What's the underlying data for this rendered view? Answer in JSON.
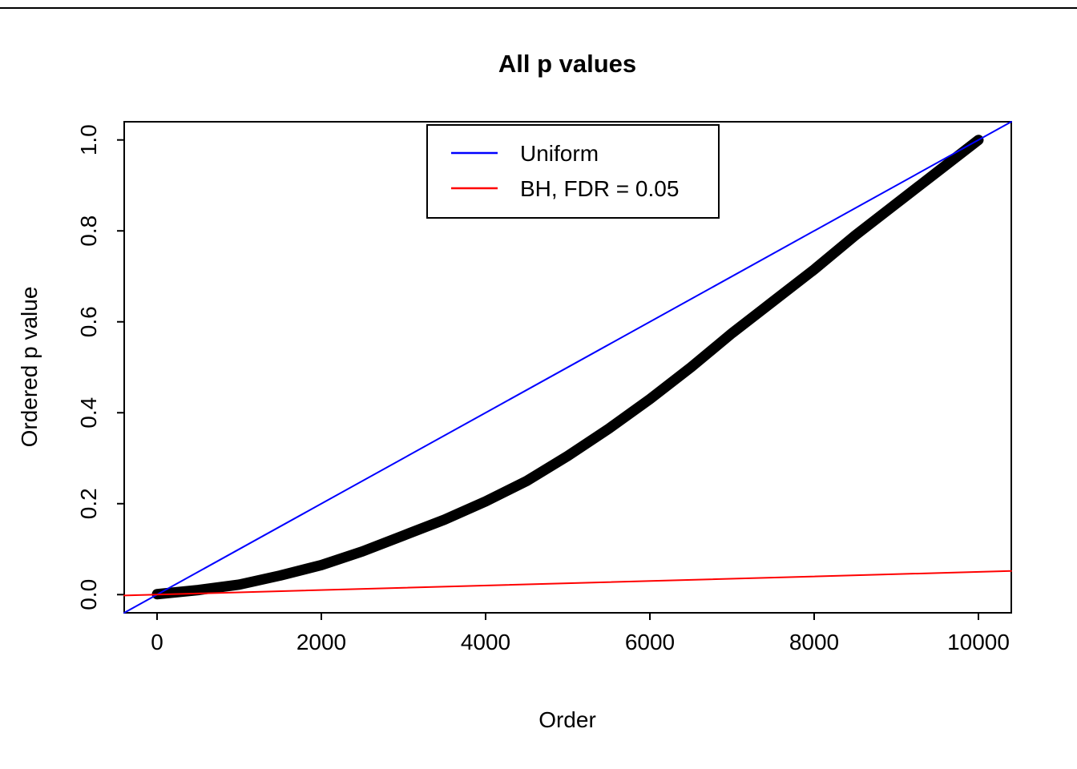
{
  "chart_data": {
    "type": "scatter",
    "title": "All p values",
    "xlabel": "Order",
    "ylabel": "Ordered p value",
    "xlim": [
      0,
      10000
    ],
    "ylim": [
      0,
      1
    ],
    "x_tick_values": [
      0,
      2000,
      4000,
      6000,
      8000,
      10000
    ],
    "x_tick_labels": [
      "0",
      "2000",
      "4000",
      "6000",
      "8000",
      "10000"
    ],
    "y_tick_values": [
      0.0,
      0.2,
      0.4,
      0.6,
      0.8,
      1.0
    ],
    "y_tick_labels": [
      "0.0",
      "0.2",
      "0.4",
      "0.6",
      "0.8",
      "1.0"
    ],
    "grid": false,
    "box": true,
    "series": [
      {
        "name": "ordered p values",
        "color": "#000000",
        "line_width": 13,
        "extend_to_box": false,
        "x": [
          0,
          500,
          1000,
          1500,
          2000,
          2500,
          3000,
          3500,
          4000,
          4500,
          5000,
          5500,
          6000,
          6500,
          7000,
          7500,
          8000,
          8500,
          9000,
          9500,
          10000
        ],
        "y": [
          0.001,
          0.01,
          0.022,
          0.042,
          0.065,
          0.095,
          0.13,
          0.165,
          0.205,
          0.25,
          0.305,
          0.365,
          0.43,
          0.5,
          0.575,
          0.645,
          0.715,
          0.79,
          0.86,
          0.93,
          1.0
        ]
      },
      {
        "name": "Uniform",
        "color": "#0000FF",
        "line_width": 2,
        "extend_to_box": true,
        "x": [
          0,
          10000
        ],
        "y": [
          0,
          1
        ]
      },
      {
        "name": "BH, FDR = 0.05",
        "color": "#FF0000",
        "line_width": 2,
        "extend_to_box": true,
        "x": [
          0,
          10000
        ],
        "y": [
          0,
          0.05
        ]
      }
    ],
    "legend": {
      "position": "top",
      "entries": [
        {
          "label": "Uniform",
          "color": "#0000FF"
        },
        {
          "label": "BH, FDR = 0.05",
          "color": "#FF0000"
        }
      ]
    }
  }
}
